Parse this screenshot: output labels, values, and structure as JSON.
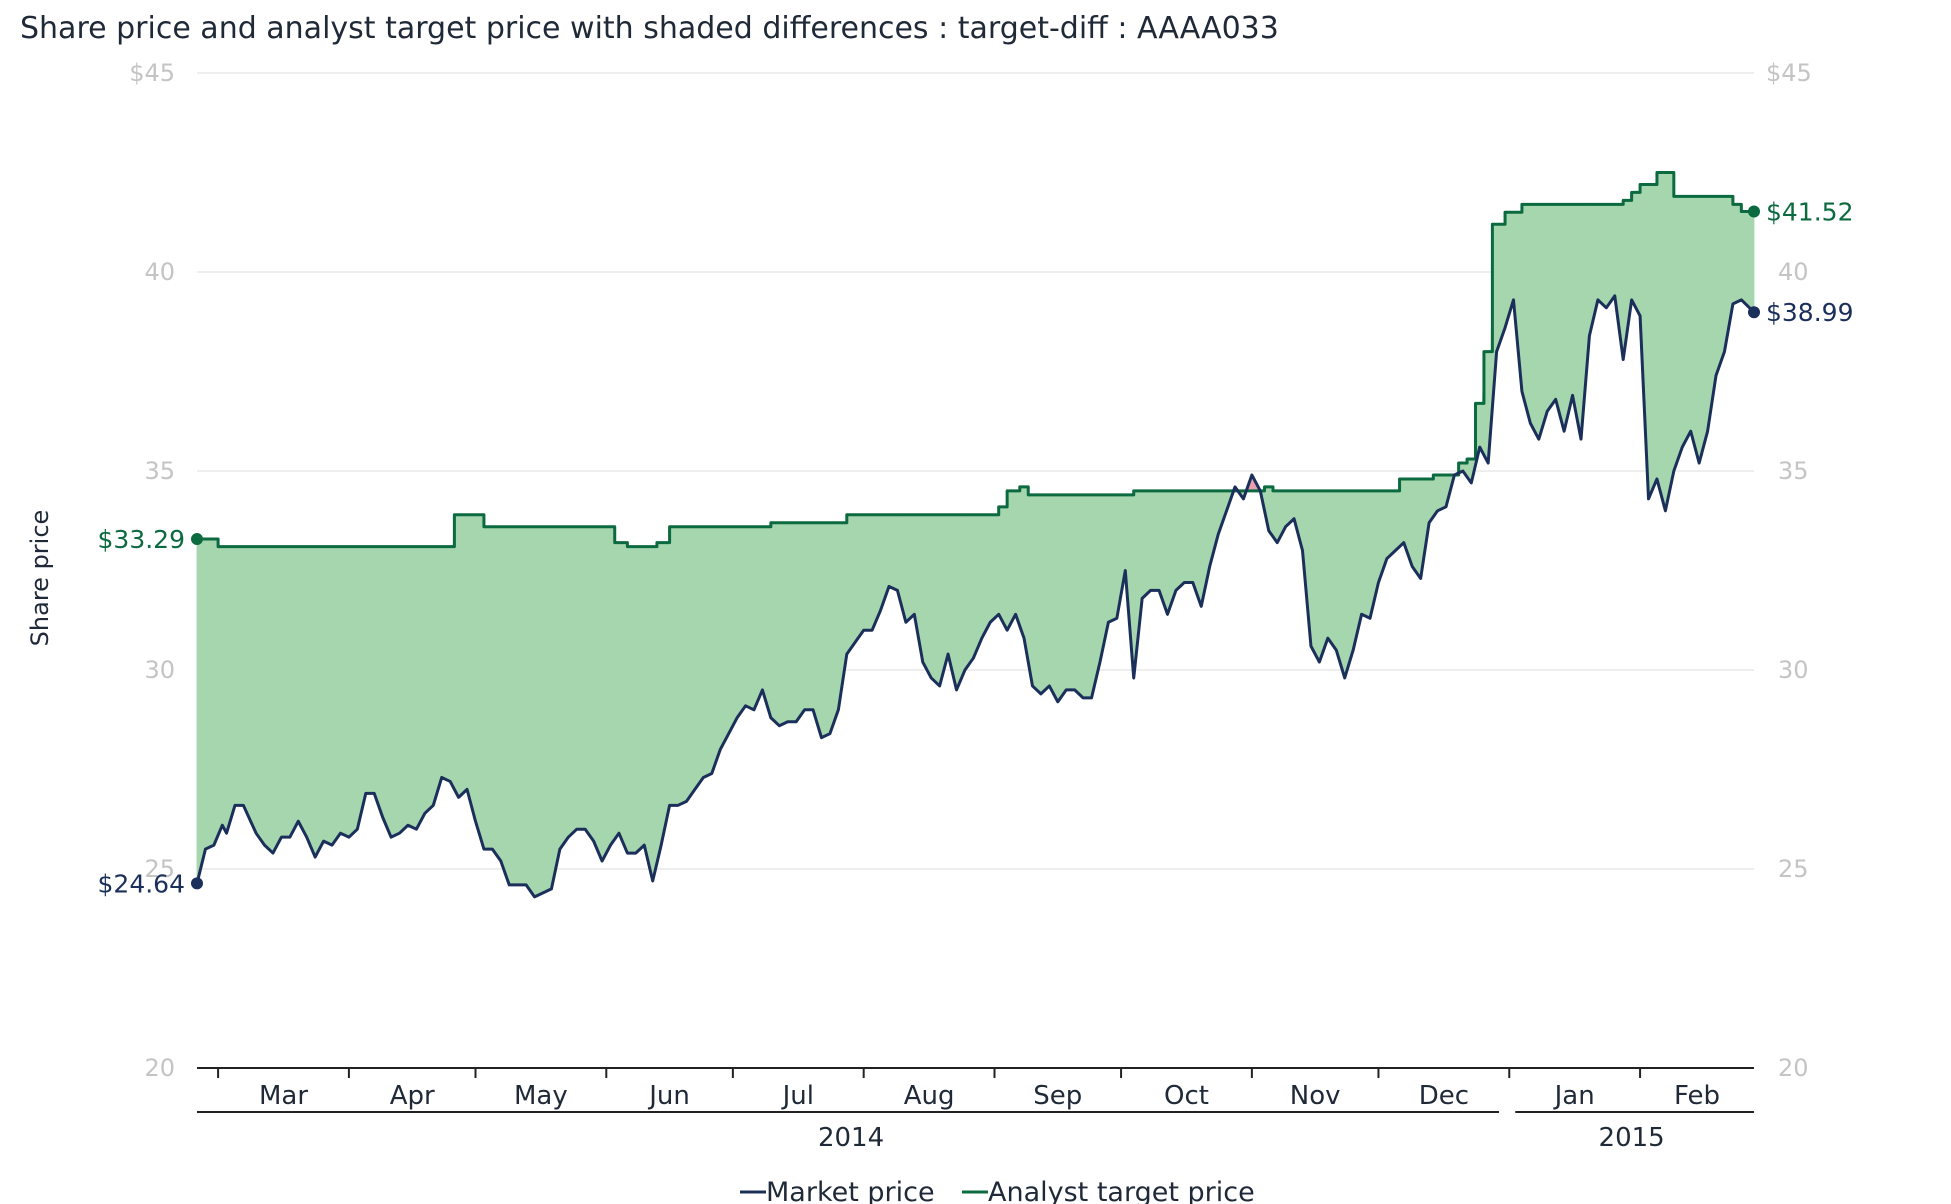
{
  "chart_data": {
    "type": "line",
    "title": "Share price and analyst target price with shaded differences : target-diff : AAAA033",
    "ylabel": "Share price",
    "ylim": [
      20,
      45
    ],
    "yticks": [
      20,
      25,
      30,
      35,
      40,
      45
    ],
    "ytick_labels_left": [
      "20",
      "25",
      "30",
      "35",
      "40",
      "$45"
    ],
    "ytick_labels_right": [
      "20",
      "25",
      "30",
      "35",
      "40",
      "$45"
    ],
    "x_start": "2014-02-24",
    "x_end": "2015-02-28",
    "months": [
      {
        "label": "Mar",
        "date": "2014-03-01"
      },
      {
        "label": "Apr",
        "date": "2014-04-01"
      },
      {
        "label": "May",
        "date": "2014-05-01"
      },
      {
        "label": "Jun",
        "date": "2014-06-01"
      },
      {
        "label": "Jul",
        "date": "2014-07-01"
      },
      {
        "label": "Aug",
        "date": "2014-08-01"
      },
      {
        "label": "Sep",
        "date": "2014-09-01"
      },
      {
        "label": "Oct",
        "date": "2014-10-01"
      },
      {
        "label": "Nov",
        "date": "2014-11-01"
      },
      {
        "label": "Dec",
        "date": "2014-12-01"
      },
      {
        "label": "Jan",
        "date": "2015-01-01"
      },
      {
        "label": "Feb",
        "date": "2015-02-01"
      }
    ],
    "years": [
      {
        "label": "2014",
        "start": "2014-02-24",
        "end": "2014-12-31"
      },
      {
        "label": "2015",
        "start": "2015-01-01",
        "end": "2015-02-28"
      }
    ],
    "grid": true,
    "legend_position": "bottom-center",
    "colors": {
      "market": "#1b2f5b",
      "target": "#0b6a3f",
      "fill_positive": "#a6d6ae",
      "fill_negative": "#e8a0b1",
      "grid": "#dddddd",
      "tick": "#c4c4c4"
    },
    "series": [
      {
        "name": "Market price",
        "key": "market",
        "points": [
          [
            "2014-02-24",
            24.64
          ],
          [
            "2014-02-26",
            25.5
          ],
          [
            "2014-02-28",
            25.6
          ],
          [
            "2014-03-02",
            26.1
          ],
          [
            "2014-03-03",
            25.9
          ],
          [
            "2014-03-05",
            26.6
          ],
          [
            "2014-03-07",
            26.6
          ],
          [
            "2014-03-10",
            25.9
          ],
          [
            "2014-03-12",
            25.6
          ],
          [
            "2014-03-14",
            25.4
          ],
          [
            "2014-03-16",
            25.8
          ],
          [
            "2014-03-18",
            25.8
          ],
          [
            "2014-03-20",
            26.2
          ],
          [
            "2014-03-22",
            25.8
          ],
          [
            "2014-03-24",
            25.3
          ],
          [
            "2014-03-26",
            25.7
          ],
          [
            "2014-03-28",
            25.6
          ],
          [
            "2014-03-30",
            25.9
          ],
          [
            "2014-04-01",
            25.8
          ],
          [
            "2014-04-03",
            26.0
          ],
          [
            "2014-04-05",
            26.9
          ],
          [
            "2014-04-07",
            26.9
          ],
          [
            "2014-04-09",
            26.3
          ],
          [
            "2014-04-11",
            25.8
          ],
          [
            "2014-04-13",
            25.9
          ],
          [
            "2014-04-15",
            26.1
          ],
          [
            "2014-04-17",
            26.0
          ],
          [
            "2014-04-19",
            26.4
          ],
          [
            "2014-04-21",
            26.6
          ],
          [
            "2014-04-23",
            27.3
          ],
          [
            "2014-04-25",
            27.2
          ],
          [
            "2014-04-27",
            26.8
          ],
          [
            "2014-04-29",
            27.0
          ],
          [
            "2014-05-01",
            26.2
          ],
          [
            "2014-05-03",
            25.5
          ],
          [
            "2014-05-05",
            25.5
          ],
          [
            "2014-05-07",
            25.2
          ],
          [
            "2014-05-09",
            24.6
          ],
          [
            "2014-05-11",
            24.6
          ],
          [
            "2014-05-13",
            24.6
          ],
          [
            "2014-05-15",
            24.3
          ],
          [
            "2014-05-17",
            24.4
          ],
          [
            "2014-05-19",
            24.5
          ],
          [
            "2014-05-21",
            25.5
          ],
          [
            "2014-05-23",
            25.8
          ],
          [
            "2014-05-25",
            26.0
          ],
          [
            "2014-05-27",
            26.0
          ],
          [
            "2014-05-29",
            25.7
          ],
          [
            "2014-05-31",
            25.2
          ],
          [
            "2014-06-02",
            25.6
          ],
          [
            "2014-06-04",
            25.9
          ],
          [
            "2014-06-06",
            25.4
          ],
          [
            "2014-06-08",
            25.4
          ],
          [
            "2014-06-10",
            25.6
          ],
          [
            "2014-06-12",
            24.7
          ],
          [
            "2014-06-14",
            25.6
          ],
          [
            "2014-06-16",
            26.6
          ],
          [
            "2014-06-18",
            26.6
          ],
          [
            "2014-06-20",
            26.7
          ],
          [
            "2014-06-22",
            27.0
          ],
          [
            "2014-06-24",
            27.3
          ],
          [
            "2014-06-26",
            27.4
          ],
          [
            "2014-06-28",
            28.0
          ],
          [
            "2014-06-30",
            28.4
          ],
          [
            "2014-07-02",
            28.8
          ],
          [
            "2014-07-04",
            29.1
          ],
          [
            "2014-07-06",
            29.0
          ],
          [
            "2014-07-08",
            29.5
          ],
          [
            "2014-07-10",
            28.8
          ],
          [
            "2014-07-12",
            28.6
          ],
          [
            "2014-07-14",
            28.7
          ],
          [
            "2014-07-16",
            28.7
          ],
          [
            "2014-07-18",
            29.0
          ],
          [
            "2014-07-20",
            29.0
          ],
          [
            "2014-07-22",
            28.3
          ],
          [
            "2014-07-24",
            28.4
          ],
          [
            "2014-07-26",
            29.0
          ],
          [
            "2014-07-28",
            30.4
          ],
          [
            "2014-07-30",
            30.7
          ],
          [
            "2014-08-01",
            31.0
          ],
          [
            "2014-08-03",
            31.0
          ],
          [
            "2014-08-05",
            31.5
          ],
          [
            "2014-08-07",
            32.1
          ],
          [
            "2014-08-09",
            32.0
          ],
          [
            "2014-08-11",
            31.2
          ],
          [
            "2014-08-13",
            31.4
          ],
          [
            "2014-08-15",
            30.2
          ],
          [
            "2014-08-17",
            29.8
          ],
          [
            "2014-08-19",
            29.6
          ],
          [
            "2014-08-21",
            30.4
          ],
          [
            "2014-08-23",
            29.5
          ],
          [
            "2014-08-25",
            30.0
          ],
          [
            "2014-08-27",
            30.3
          ],
          [
            "2014-08-29",
            30.8
          ],
          [
            "2014-08-31",
            31.2
          ],
          [
            "2014-09-02",
            31.4
          ],
          [
            "2014-09-04",
            31.0
          ],
          [
            "2014-09-06",
            31.4
          ],
          [
            "2014-09-08",
            30.8
          ],
          [
            "2014-09-10",
            29.6
          ],
          [
            "2014-09-12",
            29.4
          ],
          [
            "2014-09-14",
            29.6
          ],
          [
            "2014-09-16",
            29.2
          ],
          [
            "2014-09-18",
            29.5
          ],
          [
            "2014-09-20",
            29.5
          ],
          [
            "2014-09-22",
            29.3
          ],
          [
            "2014-09-24",
            29.3
          ],
          [
            "2014-09-26",
            30.2
          ],
          [
            "2014-09-28",
            31.2
          ],
          [
            "2014-09-30",
            31.3
          ],
          [
            "2014-10-02",
            32.5
          ],
          [
            "2014-10-04",
            29.8
          ],
          [
            "2014-10-06",
            31.8
          ],
          [
            "2014-10-08",
            32.0
          ],
          [
            "2014-10-10",
            32.0
          ],
          [
            "2014-10-12",
            31.4
          ],
          [
            "2014-10-14",
            32.0
          ],
          [
            "2014-10-16",
            32.2
          ],
          [
            "2014-10-18",
            32.2
          ],
          [
            "2014-10-20",
            31.6
          ],
          [
            "2014-10-22",
            32.6
          ],
          [
            "2014-10-24",
            33.4
          ],
          [
            "2014-10-26",
            34.0
          ],
          [
            "2014-10-28",
            34.6
          ],
          [
            "2014-10-30",
            34.3
          ],
          [
            "2014-11-01",
            34.9
          ],
          [
            "2014-11-03",
            34.5
          ],
          [
            "2014-11-05",
            33.5
          ],
          [
            "2014-11-07",
            33.2
          ],
          [
            "2014-11-09",
            33.6
          ],
          [
            "2014-11-11",
            33.8
          ],
          [
            "2014-11-13",
            33.0
          ],
          [
            "2014-11-15",
            30.6
          ],
          [
            "2014-11-17",
            30.2
          ],
          [
            "2014-11-19",
            30.8
          ],
          [
            "2014-11-21",
            30.5
          ],
          [
            "2014-11-23",
            29.8
          ],
          [
            "2014-11-25",
            30.5
          ],
          [
            "2014-11-27",
            31.4
          ],
          [
            "2014-11-29",
            31.3
          ],
          [
            "2014-12-01",
            32.2
          ],
          [
            "2014-12-03",
            32.8
          ],
          [
            "2014-12-05",
            33.0
          ],
          [
            "2014-12-07",
            33.2
          ],
          [
            "2014-12-09",
            32.6
          ],
          [
            "2014-12-11",
            32.3
          ],
          [
            "2014-12-13",
            33.7
          ],
          [
            "2014-12-15",
            34.0
          ],
          [
            "2014-12-17",
            34.1
          ],
          [
            "2014-12-19",
            34.9
          ],
          [
            "2014-12-21",
            35.0
          ],
          [
            "2014-12-23",
            34.7
          ],
          [
            "2014-12-25",
            35.6
          ],
          [
            "2014-12-27",
            35.2
          ],
          [
            "2014-12-29",
            38.0
          ],
          [
            "2014-12-31",
            38.6
          ],
          [
            "2015-01-02",
            39.3
          ],
          [
            "2015-01-04",
            37.0
          ],
          [
            "2015-01-06",
            36.2
          ],
          [
            "2015-01-08",
            35.8
          ],
          [
            "2015-01-10",
            36.5
          ],
          [
            "2015-01-12",
            36.8
          ],
          [
            "2015-01-14",
            36.0
          ],
          [
            "2015-01-16",
            36.9
          ],
          [
            "2015-01-18",
            35.8
          ],
          [
            "2015-01-20",
            38.4
          ],
          [
            "2015-01-22",
            39.3
          ],
          [
            "2015-01-24",
            39.1
          ],
          [
            "2015-01-26",
            39.4
          ],
          [
            "2015-01-28",
            37.8
          ],
          [
            "2015-01-30",
            39.3
          ],
          [
            "2015-02-01",
            38.9
          ],
          [
            "2015-02-03",
            34.3
          ],
          [
            "2015-02-05",
            34.8
          ],
          [
            "2015-02-07",
            34.0
          ],
          [
            "2015-02-09",
            35.0
          ],
          [
            "2015-02-11",
            35.6
          ],
          [
            "2015-02-13",
            36.0
          ],
          [
            "2015-02-15",
            35.2
          ],
          [
            "2015-02-17",
            36.0
          ],
          [
            "2015-02-19",
            37.4
          ],
          [
            "2015-02-21",
            38.0
          ],
          [
            "2015-02-23",
            39.2
          ],
          [
            "2015-02-25",
            39.3
          ],
          [
            "2015-02-28",
            38.99
          ]
        ]
      },
      {
        "name": "Analyst target price",
        "key": "target",
        "points": [
          [
            "2014-02-24",
            33.29
          ],
          [
            "2014-03-01",
            33.1
          ],
          [
            "2014-04-24",
            33.1
          ],
          [
            "2014-04-26",
            33.9
          ],
          [
            "2014-05-01",
            33.9
          ],
          [
            "2014-05-03",
            33.6
          ],
          [
            "2014-06-01",
            33.6
          ],
          [
            "2014-06-03",
            33.2
          ],
          [
            "2014-06-06",
            33.1
          ],
          [
            "2014-06-13",
            33.2
          ],
          [
            "2014-06-16",
            33.6
          ],
          [
            "2014-07-08",
            33.6
          ],
          [
            "2014-07-10",
            33.7
          ],
          [
            "2014-07-26",
            33.7
          ],
          [
            "2014-07-28",
            33.9
          ],
          [
            "2014-08-31",
            33.9
          ],
          [
            "2014-09-02",
            34.1
          ],
          [
            "2014-09-04",
            34.5
          ],
          [
            "2014-09-07",
            34.6
          ],
          [
            "2014-09-09",
            34.4
          ],
          [
            "2014-10-02",
            34.4
          ],
          [
            "2014-10-04",
            34.5
          ],
          [
            "2014-11-01",
            34.5
          ],
          [
            "2014-11-04",
            34.6
          ],
          [
            "2014-11-06",
            34.5
          ],
          [
            "2014-12-04",
            34.5
          ],
          [
            "2014-12-06",
            34.8
          ],
          [
            "2014-12-12",
            34.8
          ],
          [
            "2014-12-14",
            34.9
          ],
          [
            "2014-12-18",
            34.9
          ],
          [
            "2014-12-20",
            35.2
          ],
          [
            "2014-12-22",
            35.3
          ],
          [
            "2014-12-24",
            36.7
          ],
          [
            "2014-12-26",
            38.0
          ],
          [
            "2014-12-28",
            41.2
          ],
          [
            "2014-12-31",
            41.5
          ],
          [
            "2015-01-04",
            41.7
          ],
          [
            "2015-01-26",
            41.7
          ],
          [
            "2015-01-28",
            41.8
          ],
          [
            "2015-01-30",
            42.0
          ],
          [
            "2015-02-01",
            42.2
          ],
          [
            "2015-02-05",
            42.5
          ],
          [
            "2015-02-09",
            41.9
          ],
          [
            "2015-02-21",
            41.9
          ],
          [
            "2015-02-23",
            41.7
          ],
          [
            "2015-02-25",
            41.52
          ],
          [
            "2015-02-28",
            41.52
          ]
        ]
      }
    ],
    "end_labels": {
      "market_start": "$24.64",
      "target_start": "$33.29",
      "target_end": "$41.52",
      "market_end": "$38.99"
    }
  }
}
